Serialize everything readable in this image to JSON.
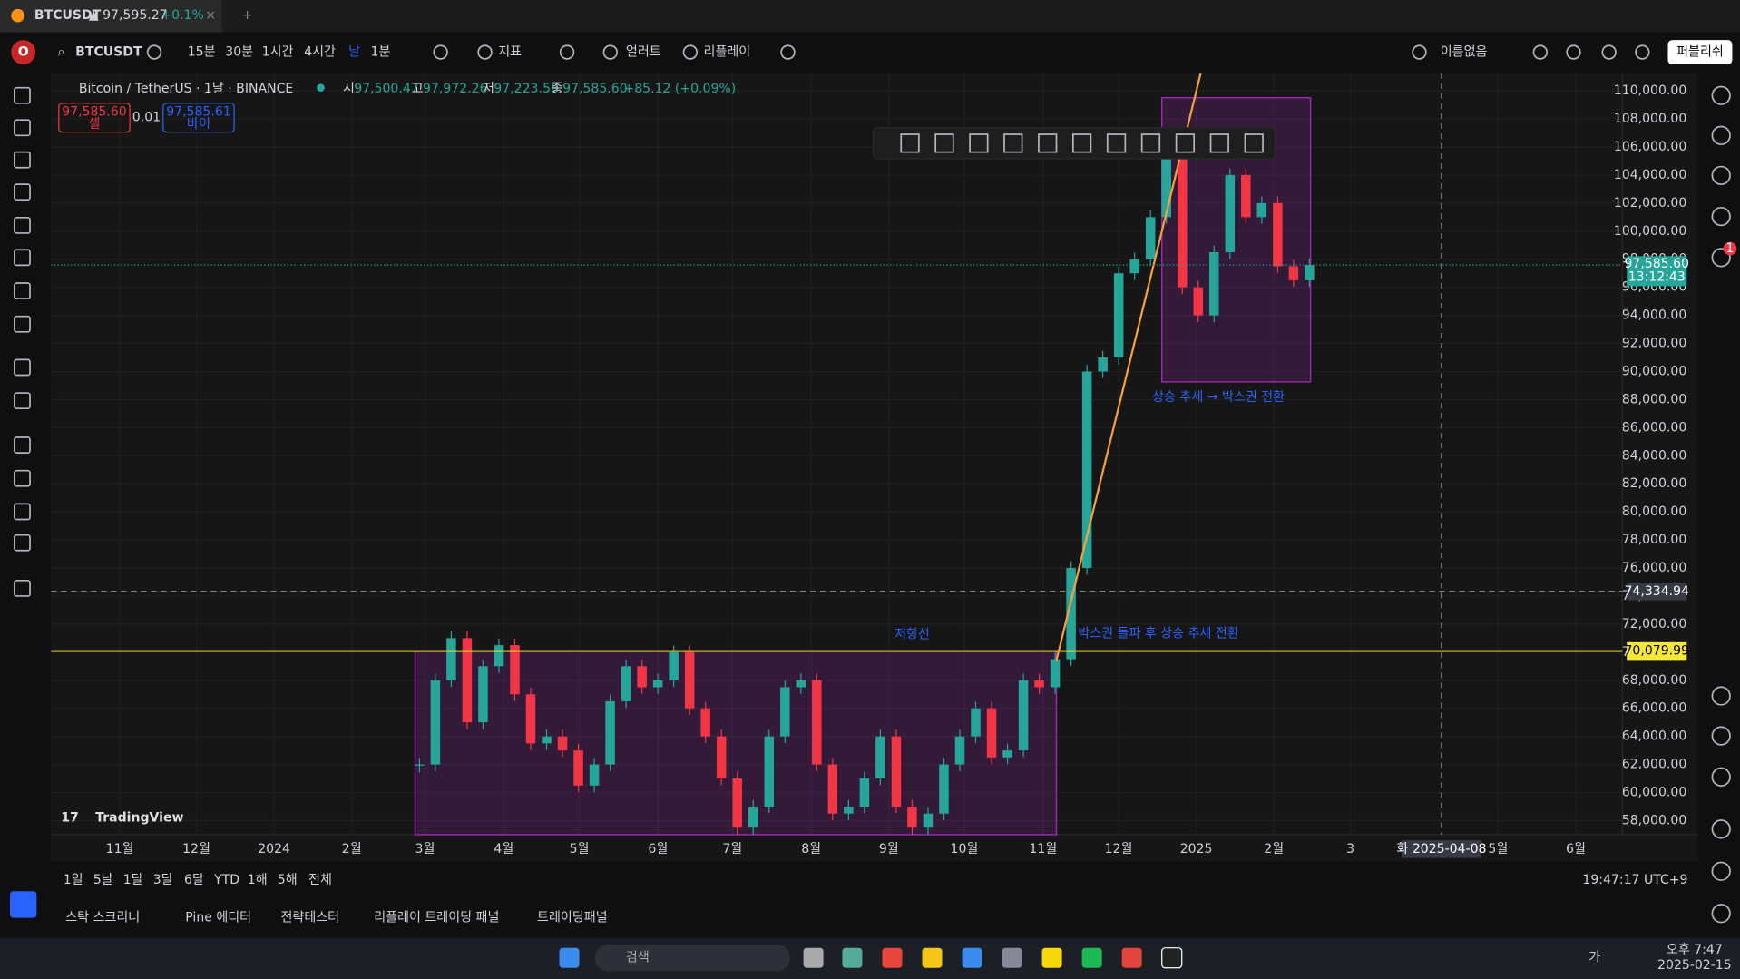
{
  "tab": {
    "symbol": "BTCUSDT",
    "price": "▲ 97,595.27",
    "change": "+0.1%"
  },
  "toolbar": {
    "symbol": "BTCUSDT",
    "intervals": [
      "15분",
      "30분",
      "1시간",
      "4시간",
      "날",
      "1분"
    ],
    "indicators": "지표",
    "alert": "얼러트",
    "replay": "리플레이",
    "layout": "이름없음",
    "publish": "퍼블리쉬"
  },
  "legend": {
    "title": "Bitcoin / TetherUS · 1날 · BINANCE",
    "o_label": "시",
    "o": "97,500.47",
    "h_label": "고",
    "h": "97,972.26",
    "l_label": "저",
    "l": "97,223.58",
    "c_label": "종",
    "c": "97,585.60",
    "change": "+85.12 (+0.09%)"
  },
  "trade": {
    "sell_price": "97,585.60",
    "sell": "셀",
    "qty": "0.01",
    "buy_price": "97,585.61",
    "buy": "바이"
  },
  "chart_data": {
    "type": "candlestick",
    "ylim": [
      57000,
      111250
    ],
    "yticks": [
      {
        "value": 110000,
        "label": "110,000.00"
      },
      {
        "value": 108000,
        "label": "108,000.00"
      },
      {
        "value": 106000,
        "label": "106,000.00"
      },
      {
        "value": 104000,
        "label": "104,000.00"
      },
      {
        "value": 102000,
        "label": "102,000.00"
      },
      {
        "value": 100000,
        "label": "100,000.00"
      },
      {
        "value": 98000,
        "label": "98,000.00"
      },
      {
        "value": 96000,
        "label": "96,000.00"
      },
      {
        "value": 94000,
        "label": "94,000.00"
      },
      {
        "value": 92000,
        "label": "92,000.00"
      },
      {
        "value": 90000,
        "label": "90,000.00"
      },
      {
        "value": 88000,
        "label": "88,000.00"
      },
      {
        "value": 86000,
        "label": "86,000.00"
      },
      {
        "value": 84000,
        "label": "84,000.00"
      },
      {
        "value": 82000,
        "label": "82,000.00"
      },
      {
        "value": 80000,
        "label": "80,000.00"
      },
      {
        "value": 78000,
        "label": "78,000.00"
      },
      {
        "value": 76000,
        "label": "76,000.00"
      },
      {
        "value": 74000,
        "label": "74,000.00"
      },
      {
        "value": 72000,
        "label": "72,000.00"
      },
      {
        "value": 70000,
        "label": "70,000.00"
      },
      {
        "value": 68000,
        "label": "68,000.00"
      },
      {
        "value": 66000,
        "label": "66,000.00"
      },
      {
        "value": 64000,
        "label": "64,000.00"
      },
      {
        "value": 62000,
        "label": "62,000.00"
      },
      {
        "value": 60000,
        "label": "60,000.00"
      },
      {
        "value": 58000,
        "label": "58,000.00"
      }
    ],
    "time_labels": [
      "11월",
      "12월",
      "2024",
      "2월",
      "3월",
      "4월",
      "5월",
      "6월",
      "7월",
      "8월",
      "9월",
      "10월",
      "11월",
      "12월",
      "2025",
      "2월",
      "3",
      "5월",
      "6월"
    ],
    "values": [
      62000,
      68000,
      71000,
      65000,
      69000,
      70500,
      67000,
      63500,
      64000,
      63000,
      60500,
      62000,
      66500,
      69000,
      67500,
      68000,
      70000,
      66000,
      64000,
      61000,
      57500,
      59000,
      64000,
      67500,
      68000,
      62000,
      58500,
      59000,
      61000,
      64000,
      59000,
      57500,
      58500,
      62000,
      64000,
      66000,
      62500,
      63000,
      68000,
      67500,
      69500,
      76000,
      90000,
      91000,
      97000,
      98000,
      101000,
      106000,
      96000,
      94000,
      98500,
      104000,
      101000,
      102000,
      97500,
      96500,
      97585.6
    ],
    "up_color": "#26a69a",
    "down_color": "#f23645",
    "grid": true,
    "annotations": [
      "저항선",
      "박스권 돌파 후 상승 추세 전환",
      "상승 추세 → 박스권 전환"
    ],
    "last_price": {
      "value": 97585.6,
      "label": "97,585.60"
    },
    "countdown": "13:12:43",
    "crosshair_price": {
      "value": 74334.94,
      "label": "74,334.94"
    },
    "crosshair_date": "화 2025-04-08",
    "resistance": {
      "value": 70079.99,
      "label": "70,079.99"
    },
    "resistance_color": "#f5e63a",
    "trend_color": "#f7a23b",
    "box_color": "#9c27b0",
    "watermark": "TradingView"
  },
  "ranges": [
    "1일",
    "5날",
    "1달",
    "3달",
    "6달",
    "YTD",
    "1해",
    "5해",
    "전체"
  ],
  "clock": "19:47:17 UTC+9",
  "panel_tabs": [
    "스탁 스크리너",
    "Pine 에디터",
    "전략테스터",
    "리플레이 트레이딩 패널",
    "트레이딩패널"
  ],
  "notifications": "1",
  "taskbar": {
    "search": "검색",
    "ime": "가",
    "time": "오후 7:47",
    "date": "2025-02-15"
  }
}
